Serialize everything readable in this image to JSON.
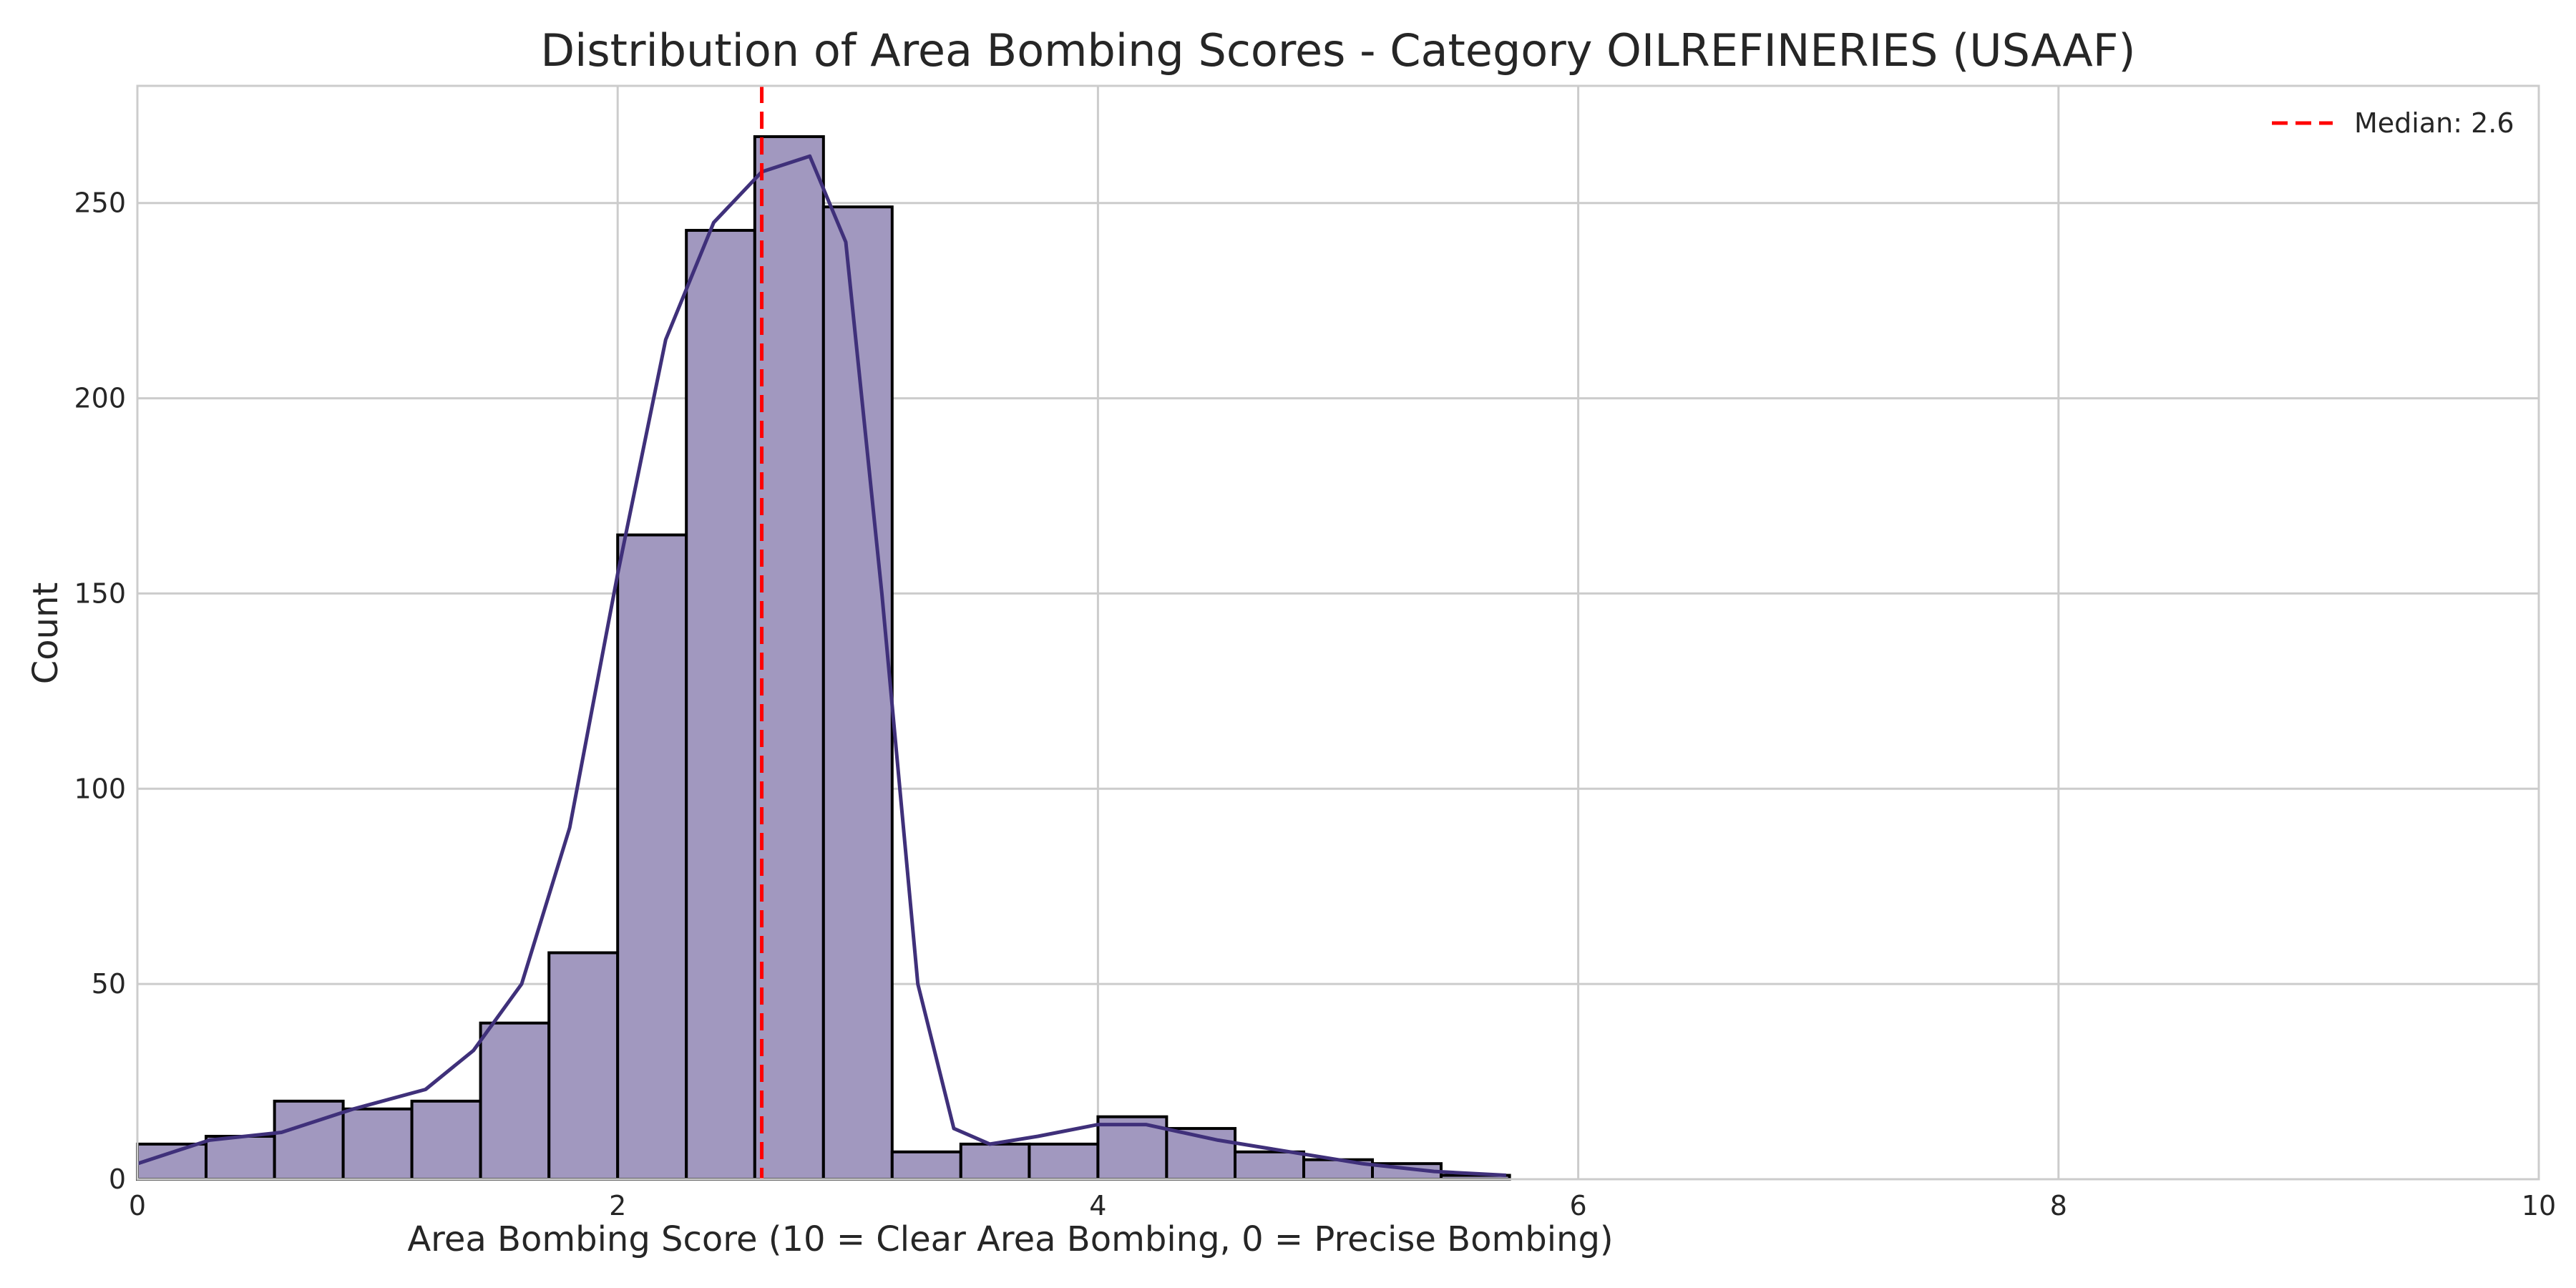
{
  "chart_data": {
    "type": "bar",
    "title": "Distribution of Area Bombing Scores - Category OILREFINERIES (USAAF)",
    "xlabel": "Area Bombing Score (10 = Clear Area Bombing, 0 = Precise Bombing)",
    "ylabel": "Count",
    "xlim": [
      0,
      10
    ],
    "ylim": [
      0,
      280
    ],
    "xticks": [
      0,
      2,
      4,
      6,
      8,
      10
    ],
    "yticks": [
      0,
      50,
      100,
      150,
      200,
      250
    ],
    "grid": true,
    "legend_position": "top-right",
    "bin_edges": [
      0.0,
      0.286,
      0.571,
      0.857,
      1.143,
      1.429,
      1.714,
      2.0,
      2.286,
      2.571,
      2.857,
      3.143,
      3.429,
      3.714,
      4.0,
      4.286,
      4.571,
      4.857,
      5.143,
      5.429,
      5.714
    ],
    "counts": [
      9,
      11,
      20,
      18,
      20,
      40,
      58,
      165,
      243,
      267,
      249,
      7,
      9,
      9,
      16,
      13,
      7,
      5,
      4,
      1
    ],
    "bar_color": "#a198bf",
    "bar_edge_color": "#000000",
    "kde": {
      "color": "#3f307a",
      "x": [
        0.0,
        0.3,
        0.6,
        0.9,
        1.2,
        1.4,
        1.6,
        1.8,
        2.0,
        2.2,
        2.4,
        2.6,
        2.8,
        2.95,
        3.1,
        3.25,
        3.4,
        3.55,
        3.75,
        4.0,
        4.2,
        4.5,
        4.8,
        5.1,
        5.4,
        5.7
      ],
      "y": [
        4,
        10,
        12,
        18,
        23,
        33,
        50,
        90,
        155,
        215,
        245,
        258,
        262,
        240,
        150,
        50,
        13,
        9,
        11,
        14,
        14,
        10,
        7,
        4,
        2,
        1
      ]
    },
    "median": {
      "value": 2.6,
      "label": "Median: 2.6",
      "color": "#ff0000"
    }
  }
}
